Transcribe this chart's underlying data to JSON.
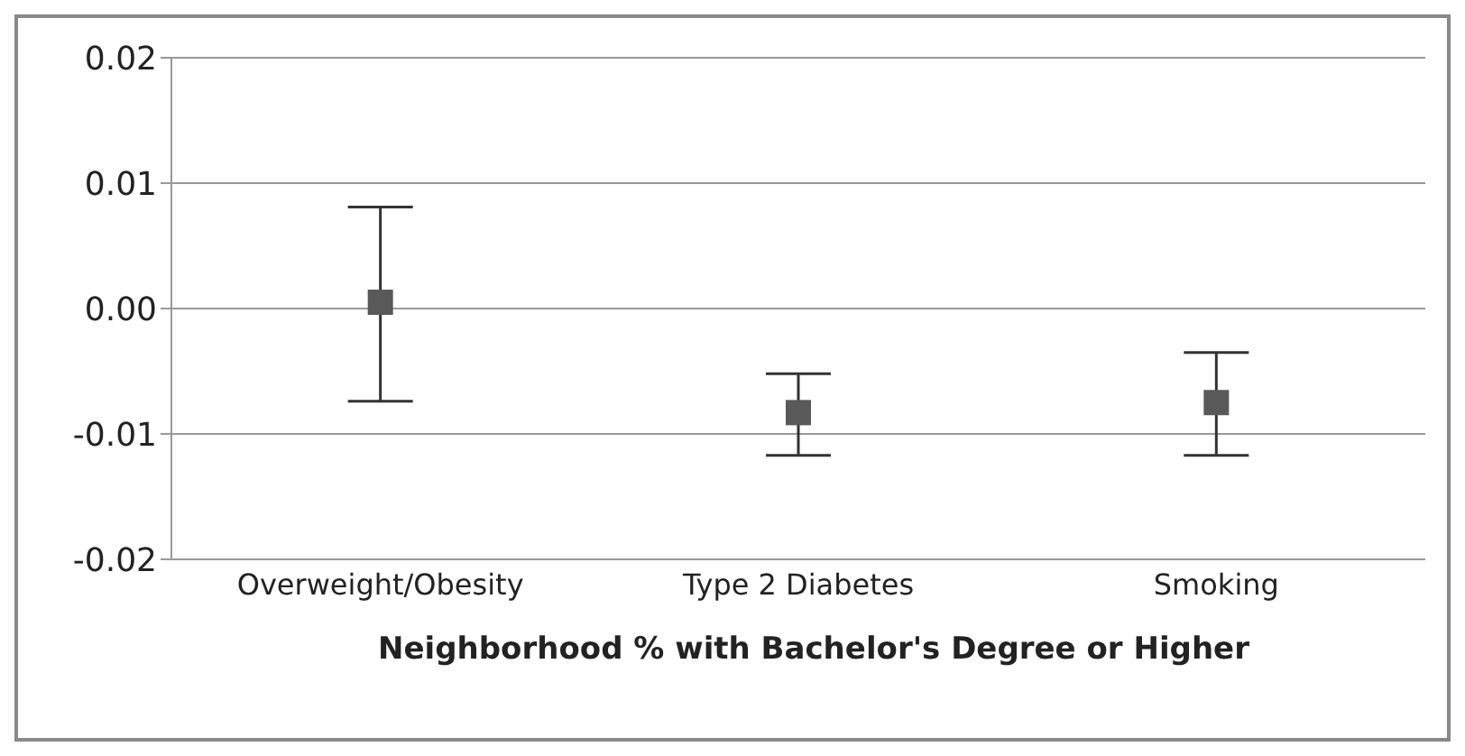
{
  "chart_data": {
    "type": "scatter",
    "xlabel": "Neighborhood % with Bachelor's Degree or Higher",
    "categories": [
      "Overweight/Obesity",
      "Type 2 Diabetes",
      "Smoking"
    ],
    "values": [
      0.0005,
      -0.0083,
      -0.0075
    ],
    "errors": [
      [
        -0.0074,
        0.0081
      ],
      [
        -0.0117,
        -0.0052
      ],
      [
        -0.0117,
        -0.0035
      ]
    ],
    "color": "#595959",
    "marker": "square",
    "ylim": [
      -0.02,
      0.02
    ],
    "yticks": [
      {
        "value": -0.02,
        "label": "-0.02"
      },
      {
        "value": -0.01,
        "label": "-0.01"
      },
      {
        "value": 0,
        "label": "0.00"
      },
      {
        "value": 0.01,
        "label": "0.01"
      },
      {
        "value": 0.02,
        "label": "0.02"
      }
    ],
    "grid": "y",
    "legend": false
  }
}
